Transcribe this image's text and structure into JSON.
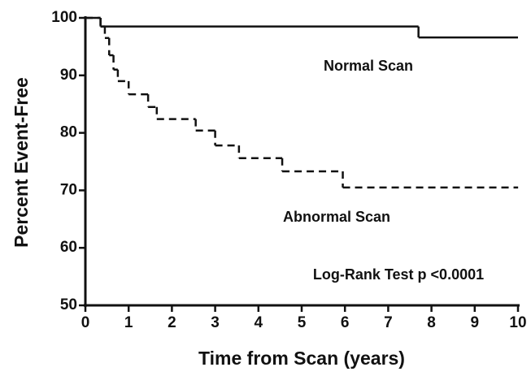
{
  "chart_data": {
    "type": "step",
    "xlabel": "Time from Scan  (years)",
    "ylabel": "Percent  Event-Free",
    "xlim": [
      0,
      10
    ],
    "ylim": [
      50,
      100
    ],
    "xticks": [
      0,
      1,
      2,
      3,
      4,
      5,
      6,
      7,
      8,
      9,
      10
    ],
    "yticks": [
      50,
      60,
      70,
      80,
      90,
      100
    ],
    "series": [
      {
        "name": "Normal Scan",
        "color": "#111111",
        "dashed": false,
        "x": [
          0,
          0.35,
          7.7,
          10
        ],
        "values": [
          100,
          98.5,
          96.6,
          96.6
        ]
      },
      {
        "name": "Abnormal Scan",
        "color": "#111111",
        "dashed": true,
        "x": [
          0,
          0.35,
          0.45,
          0.55,
          0.65,
          0.75,
          1.0,
          1.45,
          1.65,
          2.55,
          3.0,
          3.55,
          4.55,
          5.95,
          10
        ],
        "values": [
          100,
          98.5,
          96.5,
          93.5,
          91,
          89,
          86.7,
          84.5,
          82.4,
          80.4,
          77.8,
          75.6,
          73.3,
          70.5,
          70.5
        ]
      }
    ],
    "annotations": [
      "Log-Rank Test p <0.0001"
    ]
  }
}
